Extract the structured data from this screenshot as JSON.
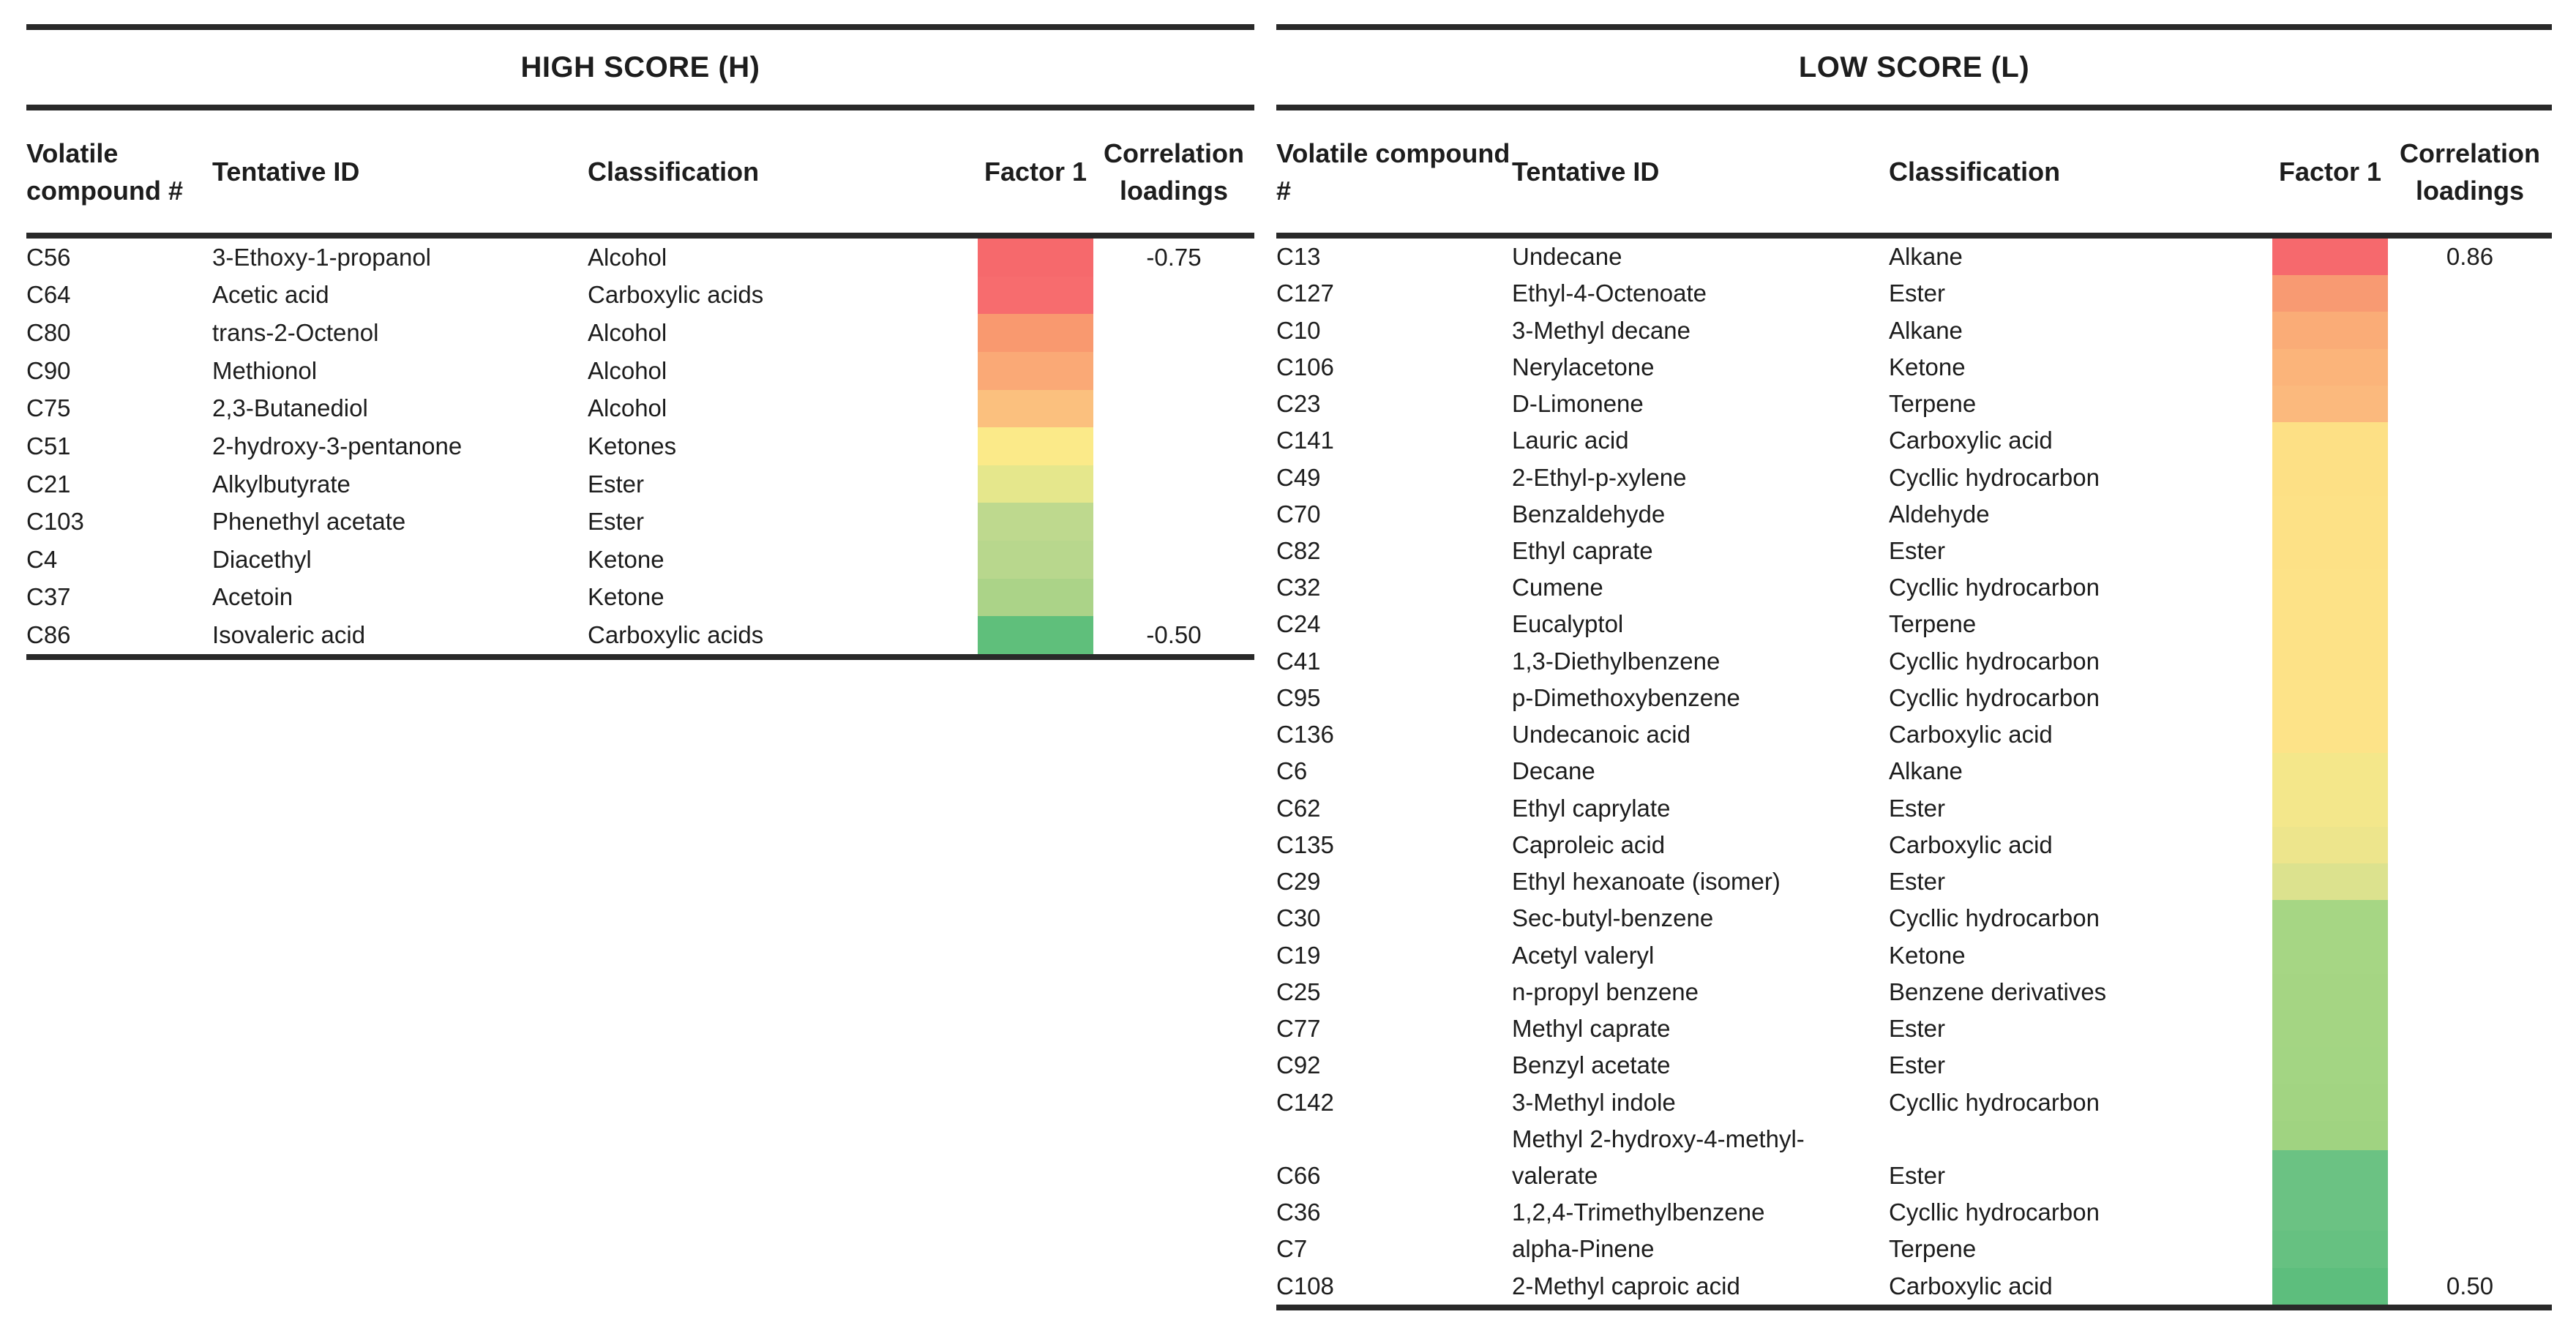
{
  "page_background": "#ffffff",
  "rule_color": "#292929",
  "columns": {
    "compound": "Volatile compound #",
    "tentative_id": "Tentative ID",
    "classification": "Classification",
    "factor1": "Factor 1",
    "loadings": "Correlation loadings"
  },
  "tables": [
    {
      "title": "HIGH SCORE (H)",
      "rows": [
        {
          "compound": "C56",
          "tentative_id": "3-Ethoxy-1-propanol",
          "classification": "Alcohol",
          "colors": [
            "#F6696C"
          ],
          "loading": "-0.75"
        },
        {
          "compound": "C64",
          "tentative_id": "Acetic acid",
          "classification": "Carboxylic acids",
          "colors": [
            "#F76C6E"
          ],
          "loading": ""
        },
        {
          "compound": "C80",
          "tentative_id": "trans-2-Octenol",
          "classification": "Alcohol",
          "colors": [
            "#F9996F"
          ],
          "loading": ""
        },
        {
          "compound": "C90",
          "tentative_id": "Methionol",
          "classification": "Alcohol",
          "colors": [
            "#FAA976"
          ],
          "loading": ""
        },
        {
          "compound": "C75",
          "tentative_id": "2,3-Butanediol",
          "classification": "Alcohol",
          "colors": [
            "#FBC07E"
          ],
          "loading": ""
        },
        {
          "compound": "C51",
          "tentative_id": "2-hydroxy-3-pentanone",
          "classification": "Ketones",
          "colors": [
            "#FBEA89"
          ],
          "loading": ""
        },
        {
          "compound": "C21",
          "tentative_id": "Alkylbutyrate",
          "classification": "Ester",
          "colors": [
            "#E5E78C"
          ],
          "loading": ""
        },
        {
          "compound": "C103",
          "tentative_id": "Phenethyl acetate",
          "classification": "Ester",
          "colors": [
            "#BED98E"
          ],
          "loading": ""
        },
        {
          "compound": "C4",
          "tentative_id": "Diacethyl",
          "classification": "Ketone",
          "colors": [
            "#B8D78D"
          ],
          "loading": ""
        },
        {
          "compound": "C37",
          "tentative_id": "Acetoin",
          "classification": "Ketone",
          "colors": [
            "#ABD388"
          ],
          "loading": ""
        },
        {
          "compound": "C86",
          "tentative_id": "Isovaleric acid",
          "classification": "Carboxylic acids",
          "colors": [
            "#5FBF7B"
          ],
          "loading": "-0.50"
        }
      ]
    },
    {
      "title": "LOW SCORE (L)",
      "rows": [
        {
          "compound": "C13",
          "tentative_id": "Undecane",
          "classification": "Alkane",
          "colors": [
            "#F6696D"
          ],
          "loading": "0.86"
        },
        {
          "compound": "C127",
          "tentative_id": "Ethyl-4-Octenoate",
          "classification": "Ester",
          "colors": [
            "#F89A72"
          ],
          "loading": ""
        },
        {
          "compound": "C10",
          "tentative_id": "3-Methyl decane",
          "classification": "Alkane",
          "colors": [
            "#FAAC77"
          ],
          "loading": ""
        },
        {
          "compound": "C106",
          "tentative_id": "Nerylacetone",
          "classification": "Ketone",
          "colors": [
            "#FBB47A"
          ],
          "loading": ""
        },
        {
          "compound": "C23",
          "tentative_id": "D-Limonene",
          "classification": "Terpene",
          "colors": [
            "#FBB97D"
          ],
          "loading": ""
        },
        {
          "compound": "C141",
          "tentative_id": "Lauric acid",
          "classification": "Carboxylic acid",
          "colors": [
            "#FDE085"
          ],
          "loading": ""
        },
        {
          "compound": "C49",
          "tentative_id": "2-Ethyl-p-xylene",
          "classification": "Cycllic hydrocarbon",
          "colors": [
            "#FDE085"
          ],
          "loading": ""
        },
        {
          "compound": "C70",
          "tentative_id": "Benzaldehyde",
          "classification": "Aldehyde",
          "colors": [
            "#FDE186"
          ],
          "loading": ""
        },
        {
          "compound": "C82",
          "tentative_id": "Ethyl caprate",
          "classification": "Ester",
          "colors": [
            "#FDE186"
          ],
          "loading": ""
        },
        {
          "compound": "C32",
          "tentative_id": "Cumene",
          "classification": "Cycllic hydrocarbon",
          "colors": [
            "#FDE287"
          ],
          "loading": ""
        },
        {
          "compound": "C24",
          "tentative_id": "Eucalyptol",
          "classification": "Terpene",
          "colors": [
            "#FDE287"
          ],
          "loading": ""
        },
        {
          "compound": "C41",
          "tentative_id": "1,3-Diethylbenzene",
          "classification": "Cycllic hydrocarbon",
          "colors": [
            "#FDE287"
          ],
          "loading": ""
        },
        {
          "compound": "C95",
          "tentative_id": "p-Dimethoxybenzene",
          "classification": "Cycllic hydrocarbon",
          "colors": [
            "#FDE388"
          ],
          "loading": ""
        },
        {
          "compound": "C136",
          "tentative_id": "Undecanoic acid",
          "classification": "Carboxylic acid",
          "colors": [
            "#FDE388"
          ],
          "loading": ""
        },
        {
          "compound": "C6",
          "tentative_id": "Decane",
          "classification": "Alkane",
          "colors": [
            "#F4E78A"
          ],
          "loading": ""
        },
        {
          "compound": "C62",
          "tentative_id": "Ethyl caprylate",
          "classification": "Ester",
          "colors": [
            "#F3E78B"
          ],
          "loading": ""
        },
        {
          "compound": "C135",
          "tentative_id": "Caproleic acid",
          "classification": "Carboxylic acid",
          "colors": [
            "#EDE58C"
          ],
          "loading": ""
        },
        {
          "compound": "C29",
          "tentative_id": "Ethyl hexanoate (isomer)",
          "classification": "Ester",
          "colors": [
            "#DCE28E"
          ],
          "loading": ""
        },
        {
          "compound": "C30",
          "tentative_id": "Sec-butyl-benzene",
          "classification": "Cycllic hydrocarbon",
          "colors": [
            "#A6D684"
          ],
          "loading": ""
        },
        {
          "compound": "C19",
          "tentative_id": "Acetyl valeryl",
          "classification": "Ketone",
          "colors": [
            "#A6D684"
          ],
          "loading": ""
        },
        {
          "compound": "C25",
          "tentative_id": "n-propyl benzene",
          "classification": "Benzene derivatives",
          "colors": [
            "#A5D583"
          ],
          "loading": ""
        },
        {
          "compound": "C77",
          "tentative_id": "Methyl caprate",
          "classification": "Ester",
          "colors": [
            "#A4D583"
          ],
          "loading": ""
        },
        {
          "compound": "C92",
          "tentative_id": "Benzyl acetate",
          "classification": "Ester",
          "colors": [
            "#A3D583"
          ],
          "loading": ""
        },
        {
          "compound": "C142",
          "tentative_id": "3-Methyl indole",
          "classification": "Cycllic hydrocarbon",
          "colors": [
            "#A2D482"
          ],
          "loading": ""
        },
        {
          "compound": "C66",
          "tentative_id": "Methyl 2-hydroxy-4-methyl-valerate",
          "tentative_id_lines": [
            "Methyl 2-hydroxy-4-methyl-",
            "valerate"
          ],
          "classification": "Ester",
          "colors": [
            "#A0D381",
            "#6BC283"
          ],
          "loading": ""
        },
        {
          "compound": "C36",
          "tentative_id": "1,2,4-Trimethylbenzene",
          "classification": "Cycllic hydrocarbon",
          "colors": [
            "#6BC283"
          ],
          "loading": ""
        },
        {
          "compound": "C7",
          "tentative_id": "alpha-Pinene",
          "classification": "Terpene",
          "colors": [
            "#66C181"
          ],
          "loading": ""
        },
        {
          "compound": "C108",
          "tentative_id": "2-Methyl caproic acid",
          "classification": "Carboxylic acid",
          "colors": [
            "#5DBE7D"
          ],
          "loading": "0.50"
        }
      ]
    }
  ]
}
